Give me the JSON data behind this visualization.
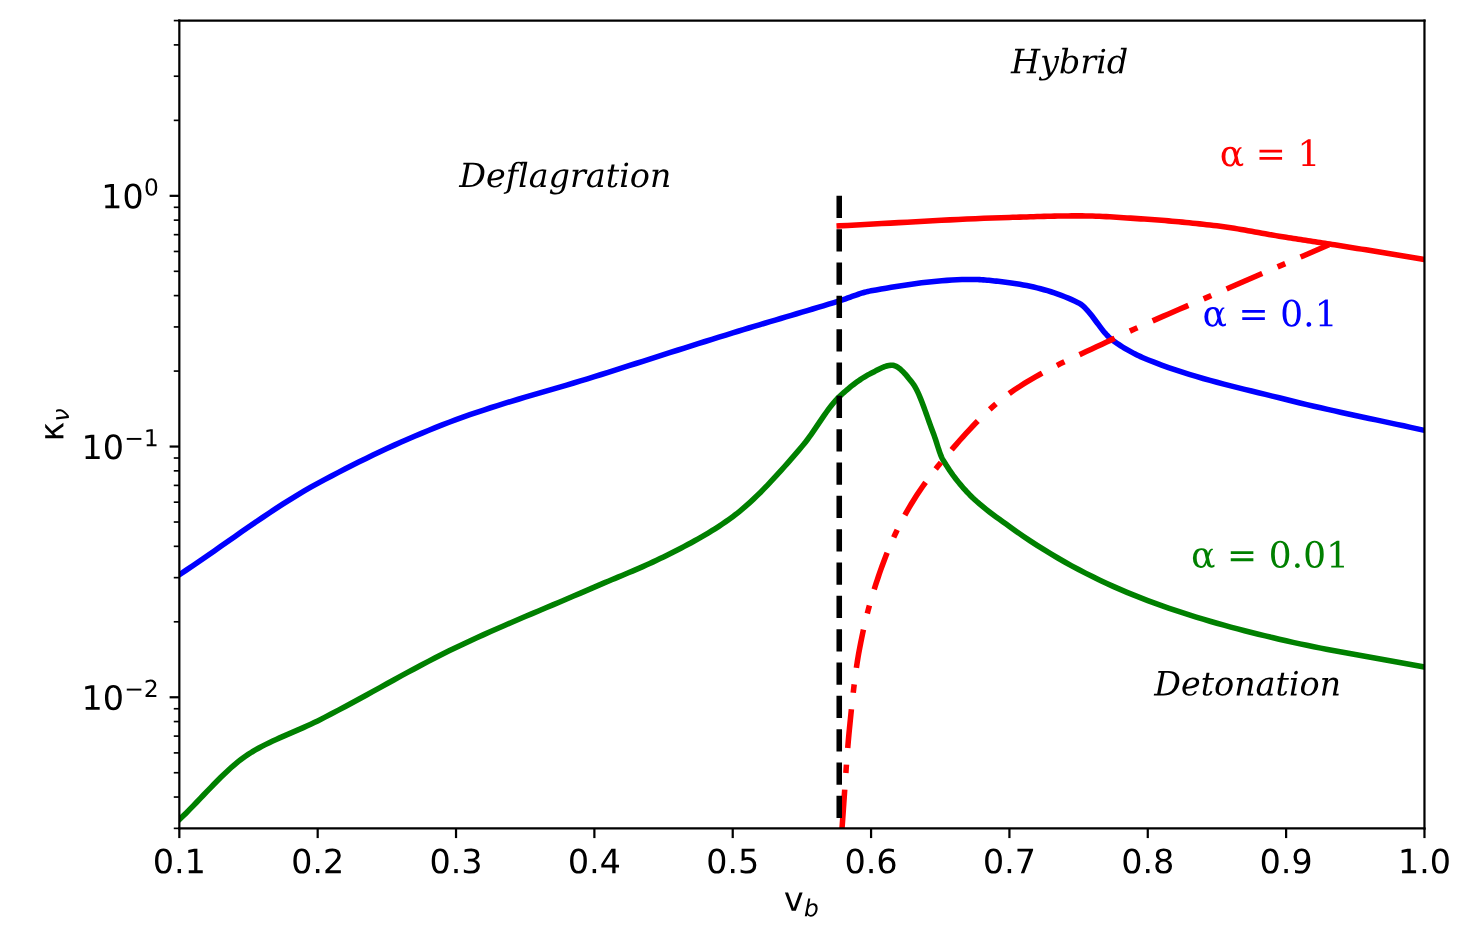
{
  "chart_data": {
    "type": "line",
    "xlabel": "v$_{b}$",
    "ylabel": "κ$_{ν}$",
    "log": "y",
    "xlim": [
      0.1,
      1.0
    ],
    "ylim": [
      0.003,
      5
    ],
    "xticks": [
      0.1,
      0.2,
      0.3,
      0.4,
      0.5,
      0.6,
      0.7,
      0.8,
      0.9,
      {
        "value": 1.0,
        "label": "1.0"
      }
    ],
    "yticks": [
      {
        "value": 0.01,
        "label": "10$^{−2}$"
      },
      {
        "value": 0.1,
        "label": "10$^{−1}$"
      },
      {
        "value": 1,
        "label": "10$^{0}$"
      }
    ],
    "grid": false,
    "legend": false,
    "series": [
      {
        "name": "α = 0.1",
        "color": "#0000ff",
        "line_style": "solid",
        "x": [
          0.1,
          0.2,
          0.3,
          0.4,
          0.5,
          0.577,
          0.6,
          0.673,
          0.7,
          0.75,
          0.774,
          0.8,
          0.9,
          1.0
        ],
        "values": [
          0.0308,
          0.0713,
          0.128,
          0.19,
          0.284,
          0.381,
          0.418,
          0.464,
          0.45,
          0.374,
          0.267,
          0.222,
          0.154,
          0.116
        ]
      },
      {
        "name": "α = 0.01",
        "color": "#008000",
        "line_style": "solid",
        "x": [
          0.1,
          0.15,
          0.2,
          0.3,
          0.4,
          0.45,
          0.5,
          0.55,
          0.577,
          0.6,
          0.615,
          0.63,
          0.645,
          0.652,
          0.7,
          0.8,
          0.9,
          1.0
        ],
        "values": [
          0.00325,
          0.00593,
          0.00805,
          0.0158,
          0.0275,
          0.0363,
          0.0525,
          0.1,
          0.158,
          0.196,
          0.211,
          0.179,
          0.113,
          0.0884,
          0.048,
          0.0243,
          0.0168,
          0.0132
        ]
      },
      {
        "name": "α = 1",
        "color": "#ff0000",
        "line_style": "solid",
        "x": [
          0.577,
          0.7,
          0.75,
          0.8,
          0.85,
          0.9,
          0.935,
          1.0
        ],
        "values": [
          0.759,
          0.82,
          0.832,
          0.806,
          0.759,
          0.683,
          0.638,
          0.557
        ]
      },
      {
        "color": "#ff0000",
        "line_style": "dashdot",
        "x": [
          0.579,
          0.584,
          0.591,
          0.606,
          0.625,
          0.652,
          0.7,
          0.774,
          0.856,
          0.931
        ],
        "values": [
          0.003,
          0.00713,
          0.0149,
          0.0311,
          0.054,
          0.0884,
          0.163,
          0.267,
          0.423,
          0.638
        ]
      },
      {
        "color": "#000000",
        "line_style": "dashed",
        "x": [
          0.577,
          0.577
        ],
        "values": [
          1.0,
          0.003
        ]
      }
    ],
    "annotations": [
      "Deflagration",
      "Hybrid",
      "Detonation"
    ]
  }
}
